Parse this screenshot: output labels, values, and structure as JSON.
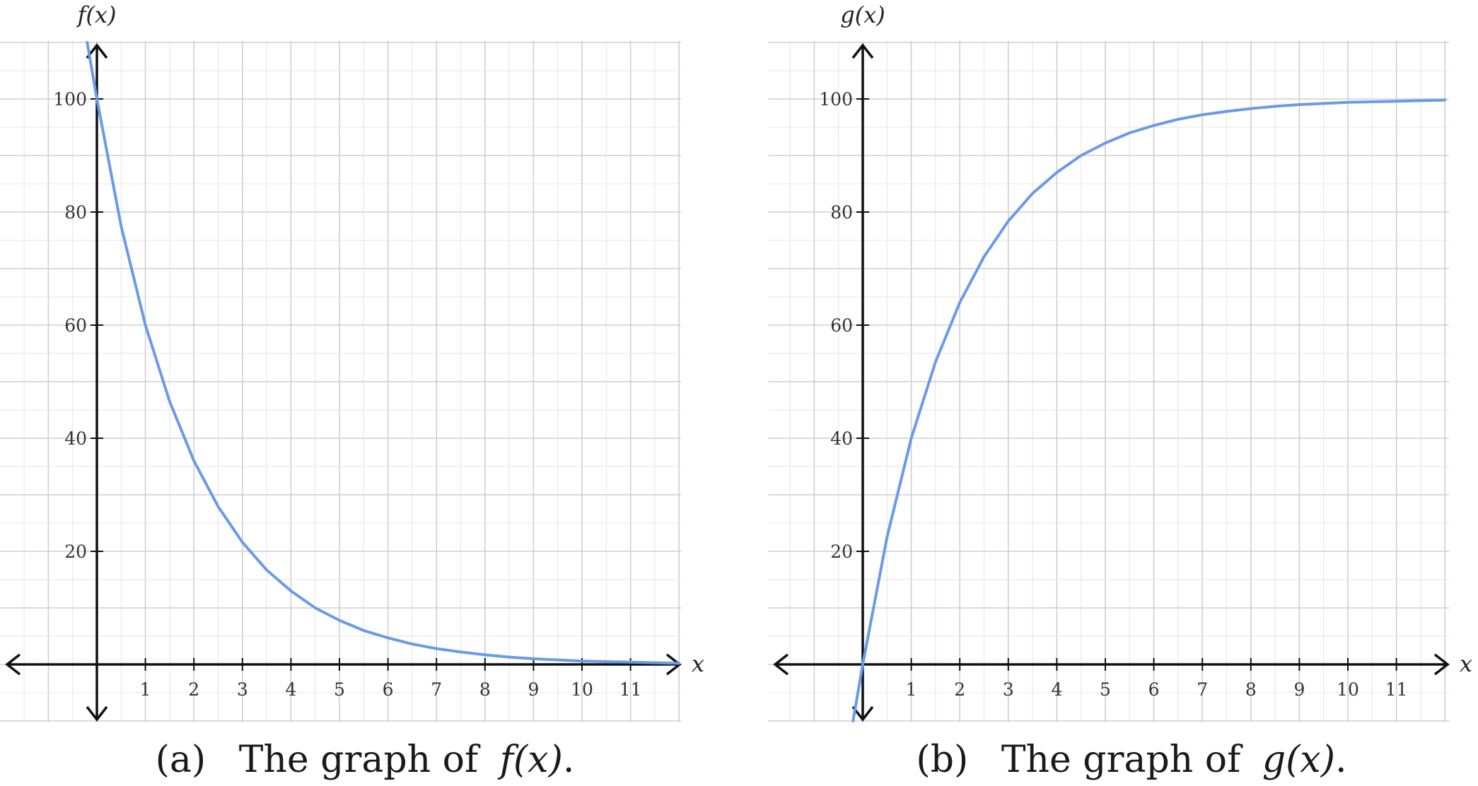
{
  "chart_data": [
    {
      "type": "line",
      "ylabel": "f(x)",
      "xlabel": "x",
      "xlim": [
        -2,
        12
      ],
      "ylim": [
        -10,
        110
      ],
      "x_ticks": [
        1,
        2,
        3,
        4,
        5,
        6,
        7,
        8,
        9,
        10,
        11
      ],
      "y_ticks": [
        20,
        40,
        60,
        80,
        100
      ],
      "grid": true,
      "line_color": "#6b9be6",
      "series": [
        {
          "x": [
            -0.2,
            0,
            0.5,
            1,
            1.5,
            2,
            2.5,
            3,
            3.5,
            4,
            4.5,
            5,
            5.5,
            6,
            6.5,
            7,
            7.5,
            8,
            8.5,
            9,
            9.5,
            10,
            10.5,
            11,
            11.5,
            12
          ],
          "values": [
            110,
            100,
            77.5,
            60,
            46.5,
            36,
            27.9,
            21.6,
            16.7,
            13,
            10,
            7.8,
            6,
            4.7,
            3.6,
            2.8,
            2.2,
            1.7,
            1.3,
            1,
            0.8,
            0.6,
            0.5,
            0.4,
            0.3,
            0.2
          ]
        }
      ],
      "caption_tag": "(a)",
      "caption_prefix": "The graph of",
      "caption_fn": "f(x)",
      "caption_suffix": "."
    },
    {
      "type": "line",
      "ylabel": "g(x)",
      "xlabel": "x",
      "xlim": [
        -2,
        12
      ],
      "ylim": [
        -10,
        110
      ],
      "x_ticks": [
        1,
        2,
        3,
        4,
        5,
        6,
        7,
        8,
        9,
        10,
        11
      ],
      "y_ticks": [
        20,
        40,
        60,
        80,
        100
      ],
      "grid": true,
      "line_color": "#6b9be6",
      "series": [
        {
          "x": [
            -0.2,
            0,
            0.5,
            1,
            1.5,
            2,
            2.5,
            3,
            3.5,
            4,
            4.5,
            5,
            5.5,
            6,
            6.5,
            7,
            7.5,
            8,
            8.5,
            9,
            9.5,
            10,
            10.5,
            11,
            11.5,
            12
          ],
          "values": [
            -10,
            0,
            22.5,
            40,
            53.5,
            64,
            72.1,
            78.4,
            83.3,
            87,
            90,
            92.2,
            94,
            95.3,
            96.4,
            97.2,
            97.8,
            98.3,
            98.7,
            99,
            99.2,
            99.4,
            99.5,
            99.6,
            99.7,
            99.8
          ]
        }
      ],
      "caption_tag": "(b)",
      "caption_prefix": "The graph of",
      "caption_fn": "g(x)",
      "caption_suffix": "."
    }
  ]
}
